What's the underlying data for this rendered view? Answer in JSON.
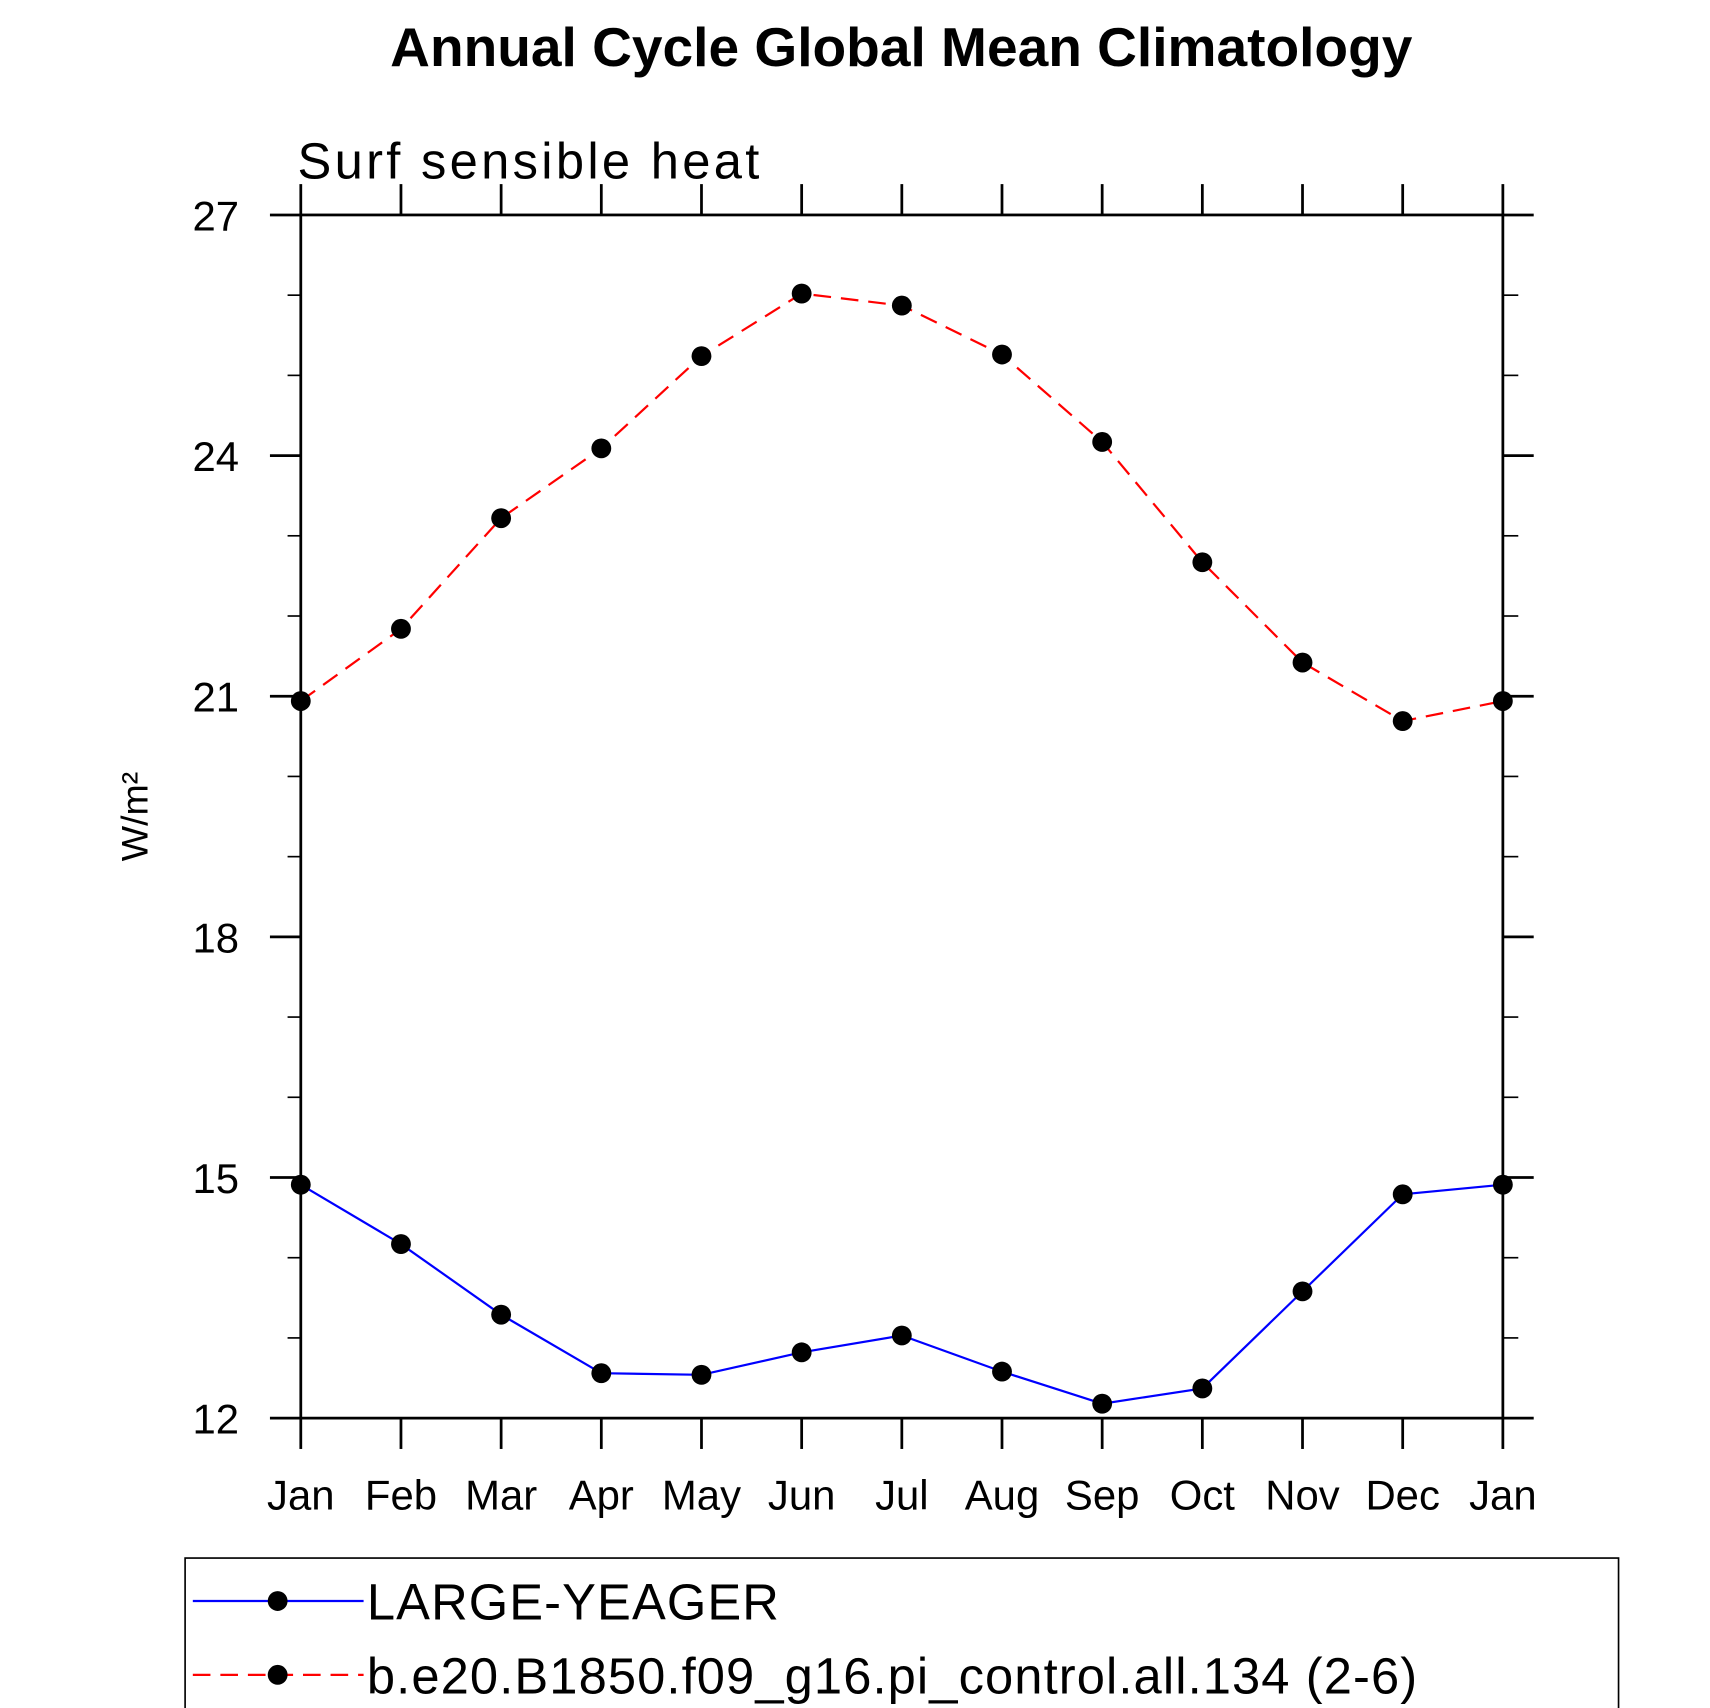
{
  "chart_data": {
    "type": "line",
    "title": "Annual Cycle Global Mean Climatology",
    "subtitle": "Surf sensible heat",
    "y_label": "W/m²",
    "categories": [
      "Jan",
      "Feb",
      "Mar",
      "Apr",
      "May",
      "Jun",
      "Jul",
      "Aug",
      "Sep",
      "Oct",
      "Nov",
      "Dec",
      "Jan"
    ],
    "ylim": [
      12,
      27
    ],
    "yticks": [
      12,
      15,
      18,
      21,
      24,
      27
    ],
    "yticks_minor": [
      13,
      14,
      16,
      17,
      19,
      20,
      22,
      23,
      25,
      26
    ],
    "series": [
      {
        "name": "LARGE-YEAGER",
        "color": "#0000ff",
        "dash": "solid",
        "values": [
          14.91,
          14.17,
          13.29,
          12.56,
          12.54,
          12.82,
          13.03,
          12.58,
          12.18,
          12.37,
          13.58,
          14.79,
          14.91
        ]
      },
      {
        "name": "b.e20.B1850.f09_g16.pi_control.all.134 (2-6)",
        "color": "#ff0000",
        "dash": "dashed",
        "values": [
          20.94,
          21.84,
          23.22,
          24.09,
          25.24,
          26.02,
          25.87,
          25.26,
          24.17,
          22.67,
          21.42,
          20.69,
          20.94
        ]
      }
    ]
  }
}
